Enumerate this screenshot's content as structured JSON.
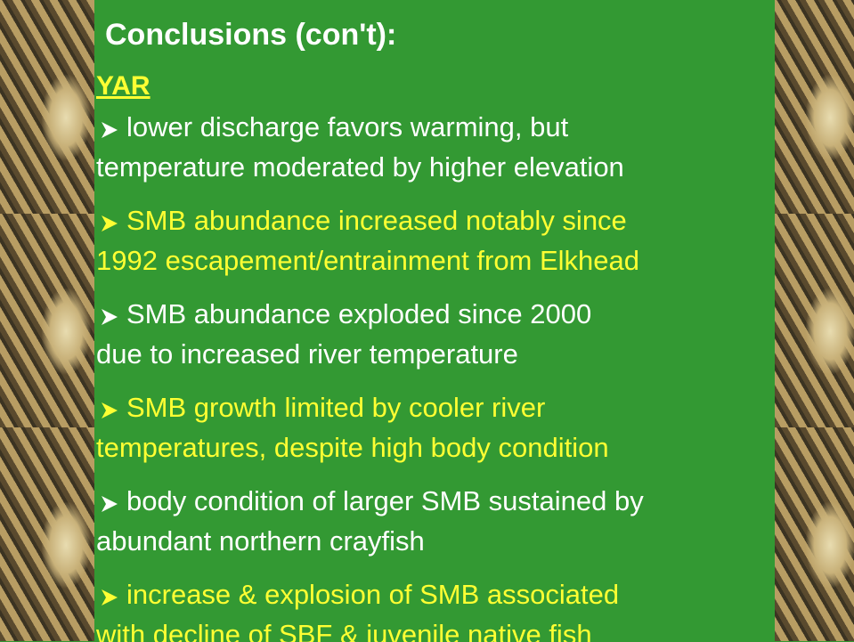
{
  "title": "Conclusions (con't):",
  "subtitle": "YAR",
  "bullets": [
    {
      "color": "#ffffff",
      "lines": [
        "lower discharge favors warming, but",
        "temperature moderated by higher elevation"
      ]
    },
    {
      "color": "#ffff33",
      "lines": [
        "SMB abundance increased notably since",
        "1992 escapement/entrainment from Elkhead"
      ]
    },
    {
      "color": "#ffffff",
      "lines": [
        "SMB abundance exploded since 2000",
        "due to increased river temperature"
      ]
    },
    {
      "color": "#ffff33",
      "lines": [
        "SMB growth limited by cooler river",
        "temperatures, despite high  body condition"
      ]
    },
    {
      "color": "#ffffff",
      "lines": [
        "body condition of larger SMB sustained by",
        "abundant northern crayfish"
      ]
    },
    {
      "color": "#ffff33",
      "lines": [
        "increase & explosion of SMB associated",
        "with decline of SBF & juvenile native fish"
      ]
    }
  ]
}
